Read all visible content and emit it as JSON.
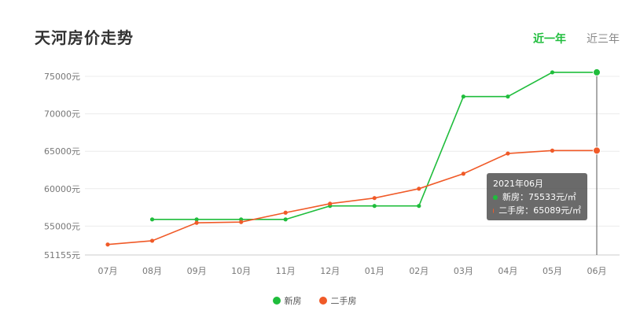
{
  "header": {
    "title": "天河房价走势",
    "tabs": [
      {
        "label": "近一年",
        "active": true
      },
      {
        "label": "近三年",
        "active": false
      }
    ]
  },
  "colors": {
    "new": "#1fbd3c",
    "second": "#f05a28",
    "active_tab": "#1fbd3c"
  },
  "tooltip": {
    "title": "2021年06月",
    "new_text": "新房：75533元/㎡",
    "second_text": "二手房：65089元/㎡"
  },
  "chart_data": {
    "type": "line",
    "title": "天河房价走势",
    "categories": [
      "07月",
      "08月",
      "09月",
      "10月",
      "11月",
      "12月",
      "01月",
      "02月",
      "03月",
      "04月",
      "05月",
      "06月"
    ],
    "y_ticks": [
      51155,
      55000,
      60000,
      65000,
      70000,
      75000
    ],
    "y_tick_labels": [
      "51155元",
      "55000元",
      "60000元",
      "65000元",
      "70000元",
      "75000元"
    ],
    "ylim": [
      51155,
      77000
    ],
    "grid": true,
    "legend_position": "bottom",
    "series": [
      {
        "name": "新房",
        "color": "#1fbd3c",
        "values": [
          null,
          55900,
          55900,
          55900,
          55900,
          57700,
          57700,
          57700,
          72300,
          72300,
          75533,
          75533
        ]
      },
      {
        "name": "二手房",
        "color": "#f05a28",
        "values": [
          52550,
          53050,
          55450,
          55550,
          56800,
          58000,
          58750,
          60000,
          62000,
          64700,
          65089,
          65089
        ]
      }
    ]
  }
}
